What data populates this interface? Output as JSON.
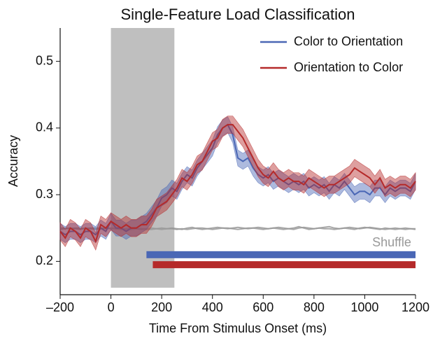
{
  "chart_data": {
    "type": "line",
    "title": "Single-Feature Load Classification",
    "x_label": "Time From Stimulus Onset (ms)",
    "y_label": "Accuracy",
    "xlim": [
      -200,
      1200
    ],
    "ylim": [
      0.15,
      0.55
    ],
    "xticks": [
      {
        "value": -200,
        "label": "–200"
      },
      0,
      200,
      400,
      600,
      800,
      1000,
      1200
    ],
    "yticks": [
      0.2,
      0.3,
      0.4,
      0.5
    ],
    "shade": {
      "start": 0,
      "end": 250,
      "color": "#bfbfbf"
    },
    "legend": "upper right",
    "x": [
      -200,
      -180,
      -160,
      -140,
      -120,
      -100,
      -80,
      -60,
      -40,
      -20,
      0,
      20,
      40,
      60,
      80,
      100,
      120,
      140,
      160,
      180,
      200,
      220,
      240,
      260,
      280,
      300,
      320,
      340,
      360,
      380,
      400,
      420,
      440,
      460,
      480,
      500,
      520,
      540,
      560,
      580,
      600,
      620,
      640,
      660,
      680,
      700,
      720,
      740,
      760,
      780,
      800,
      820,
      840,
      860,
      880,
      900,
      920,
      940,
      960,
      980,
      1000,
      1020,
      1040,
      1060,
      1080,
      1100,
      1120,
      1140,
      1160,
      1180,
      1200
    ],
    "series": [
      {
        "name": "Color to Orientation",
        "color": "#4a67b5",
        "error": 0.012,
        "values": [
          0.245,
          0.24,
          0.245,
          0.245,
          0.24,
          0.245,
          0.245,
          0.24,
          0.25,
          0.245,
          0.26,
          0.25,
          0.25,
          0.245,
          0.25,
          0.25,
          0.255,
          0.26,
          0.27,
          0.28,
          0.295,
          0.3,
          0.31,
          0.305,
          0.32,
          0.33,
          0.325,
          0.34,
          0.35,
          0.36,
          0.37,
          0.39,
          0.4,
          0.405,
          0.39,
          0.355,
          0.35,
          0.355,
          0.34,
          0.33,
          0.325,
          0.33,
          0.32,
          0.325,
          0.32,
          0.315,
          0.32,
          0.315,
          0.32,
          0.31,
          0.315,
          0.31,
          0.315,
          0.305,
          0.315,
          0.31,
          0.32,
          0.31,
          0.3,
          0.305,
          0.305,
          0.3,
          0.31,
          0.31,
          0.3,
          0.31,
          0.305,
          0.31,
          0.31,
          0.305,
          0.32
        ]
      },
      {
        "name": "Orientation to Color",
        "color": "#b52a2a",
        "error": 0.013,
        "values": [
          0.245,
          0.235,
          0.25,
          0.245,
          0.235,
          0.25,
          0.245,
          0.23,
          0.255,
          0.25,
          0.26,
          0.255,
          0.25,
          0.255,
          0.25,
          0.25,
          0.255,
          0.255,
          0.265,
          0.28,
          0.285,
          0.29,
          0.3,
          0.31,
          0.325,
          0.32,
          0.33,
          0.345,
          0.35,
          0.365,
          0.38,
          0.385,
          0.4,
          0.405,
          0.405,
          0.395,
          0.385,
          0.37,
          0.355,
          0.34,
          0.33,
          0.325,
          0.335,
          0.325,
          0.32,
          0.325,
          0.32,
          0.32,
          0.315,
          0.325,
          0.32,
          0.315,
          0.31,
          0.315,
          0.315,
          0.32,
          0.325,
          0.33,
          0.34,
          0.335,
          0.33,
          0.325,
          0.315,
          0.325,
          0.31,
          0.315,
          0.31,
          0.315,
          0.315,
          0.31,
          0.32
        ]
      }
    ],
    "shuffle": {
      "label": "Shuffle",
      "color": "#999999",
      "series": [
        [
          0.25,
          0.25,
          0.249,
          0.25,
          0.25,
          0.249,
          0.25,
          0.25,
          0.25,
          0.249,
          0.25,
          0.249,
          0.248,
          0.249,
          0.25,
          0.249,
          0.248,
          0.249,
          0.25,
          0.249,
          0.248,
          0.249,
          0.25,
          0.249,
          0.248,
          0.25,
          0.251,
          0.249,
          0.248,
          0.249,
          0.25,
          0.251,
          0.25,
          0.249,
          0.25,
          0.251,
          0.25,
          0.249,
          0.25,
          0.251,
          0.25,
          0.249,
          0.25,
          0.251,
          0.25,
          0.249,
          0.248,
          0.25,
          0.251,
          0.25,
          0.249,
          0.25,
          0.251,
          0.252,
          0.25,
          0.249,
          0.25,
          0.251,
          0.25,
          0.249,
          0.25,
          0.251,
          0.25,
          0.249,
          0.248,
          0.249,
          0.25,
          0.249,
          0.248,
          0.249,
          0.248
        ],
        [
          0.248,
          0.249,
          0.25,
          0.249,
          0.248,
          0.25,
          0.249,
          0.248,
          0.249,
          0.25,
          0.249,
          0.25,
          0.249,
          0.248,
          0.248,
          0.249,
          0.249,
          0.248,
          0.248,
          0.249,
          0.25,
          0.249,
          0.249,
          0.248,
          0.249,
          0.248,
          0.249,
          0.25,
          0.25,
          0.249,
          0.248,
          0.249,
          0.25,
          0.25,
          0.249,
          0.248,
          0.249,
          0.25,
          0.25,
          0.249,
          0.248,
          0.249,
          0.25,
          0.249,
          0.248,
          0.249,
          0.25,
          0.252,
          0.25,
          0.248,
          0.249,
          0.25,
          0.249,
          0.249,
          0.248,
          0.249,
          0.25,
          0.249,
          0.248,
          0.25,
          0.251,
          0.25,
          0.249,
          0.248,
          0.25,
          0.249,
          0.248,
          0.249,
          0.25,
          0.249,
          0.249
        ]
      ]
    },
    "significance": [
      {
        "start": 140,
        "end": 1200,
        "y": 0.21,
        "color": "#4a67b5"
      },
      {
        "start": 165,
        "end": 1200,
        "y": 0.195,
        "color": "#b52a2a"
      }
    ]
  }
}
